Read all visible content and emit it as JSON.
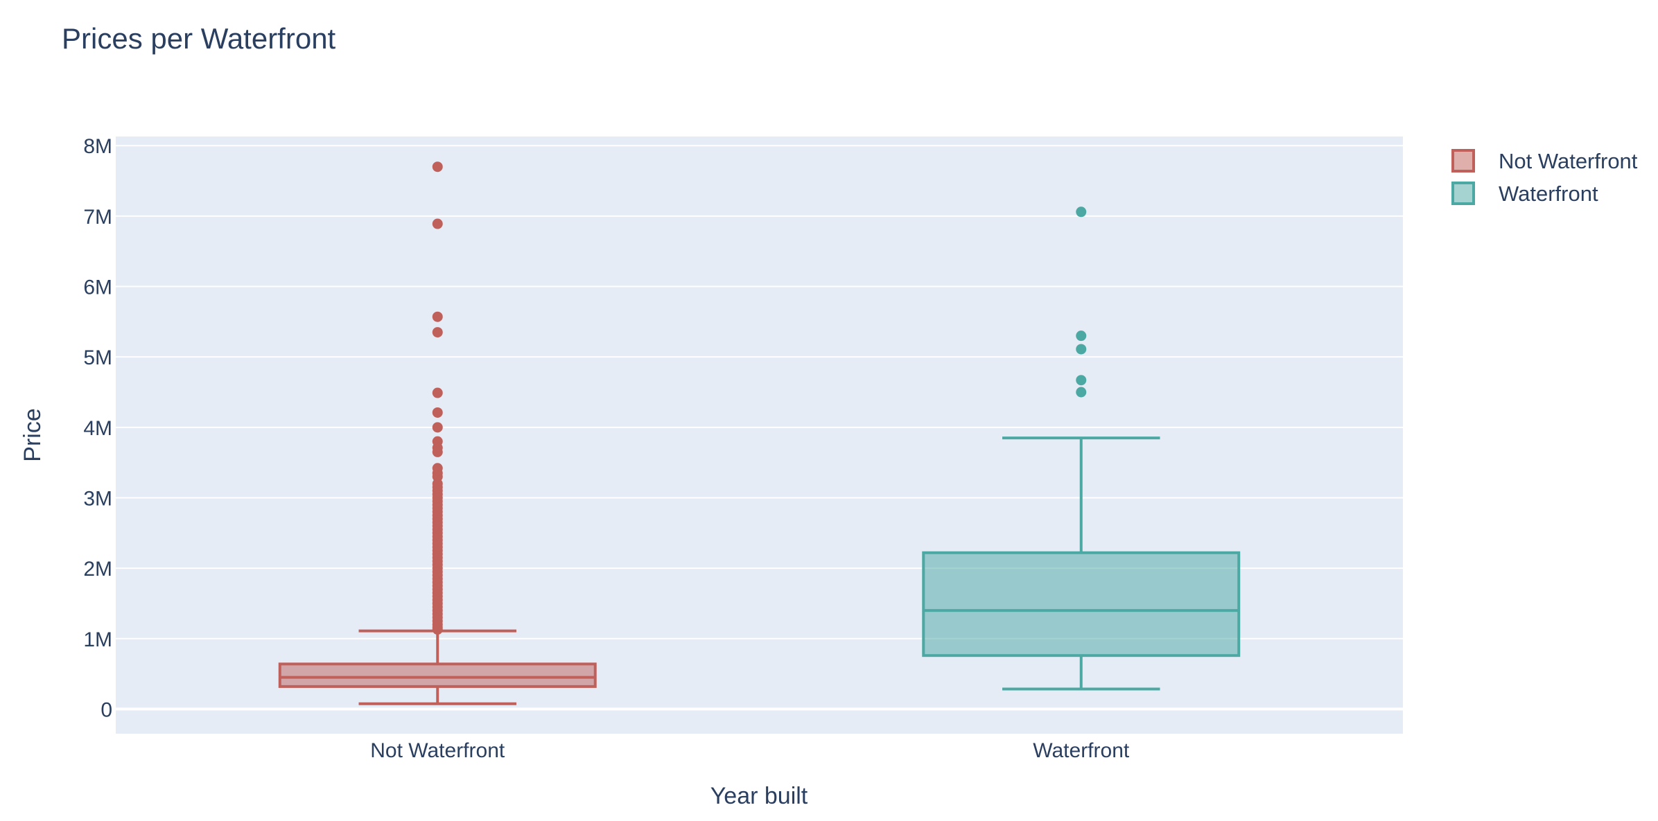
{
  "chart_data": {
    "type": "box",
    "title": "Prices per Waterfront",
    "xlabel": "Year built",
    "ylabel": "Price",
    "ylim": [
      -350000,
      8130000
    ],
    "yticks": [
      {
        "value": 0,
        "label": "0"
      },
      {
        "value": 1000000,
        "label": "1M"
      },
      {
        "value": 2000000,
        "label": "2M"
      },
      {
        "value": 3000000,
        "label": "3M"
      },
      {
        "value": 4000000,
        "label": "4M"
      },
      {
        "value": 5000000,
        "label": "5M"
      },
      {
        "value": 6000000,
        "label": "6M"
      },
      {
        "value": 7000000,
        "label": "7M"
      },
      {
        "value": 8000000,
        "label": "8M"
      }
    ],
    "categories": [
      "Not Waterfront",
      "Waterfront"
    ],
    "grid": true,
    "legend_position": "top-right",
    "series": [
      {
        "name": "Not Waterfront",
        "category": "Not Waterfront",
        "color": "#c0605a",
        "fill": "rgba(192,96,90,0.5)",
        "min": 75000,
        "q1": 320000,
        "median": 450000,
        "q3": 640000,
        "max": 1110000,
        "outliers": [
          7700000,
          6890000,
          5570000,
          5350000,
          4490000,
          4210000,
          4000000,
          3800000,
          3710000,
          3650000,
          3420000,
          3350000,
          3300000,
          3200000,
          3150000,
          3100000,
          3050000,
          3000000,
          2950000,
          2900000,
          2850000,
          2800000,
          2750000,
          2700000,
          2650000,
          2600000,
          2550000,
          2500000,
          2450000,
          2400000,
          2350000,
          2300000,
          2250000,
          2200000,
          2150000,
          2100000,
          2050000,
          2000000,
          1950000,
          1900000,
          1850000,
          1800000,
          1750000,
          1700000,
          1650000,
          1600000,
          1550000,
          1500000,
          1450000,
          1400000,
          1350000,
          1300000,
          1250000,
          1200000,
          1160000,
          1130000
        ]
      },
      {
        "name": "Waterfront",
        "category": "Waterfront",
        "color": "#4ca8a3",
        "fill": "rgba(76,168,163,0.5)",
        "min": 285000,
        "q1": 760000,
        "median": 1400000,
        "q3": 2220000,
        "max": 3850000,
        "outliers": [
          7060000,
          5300000,
          5110000,
          4670000,
          4500000
        ]
      }
    ]
  }
}
